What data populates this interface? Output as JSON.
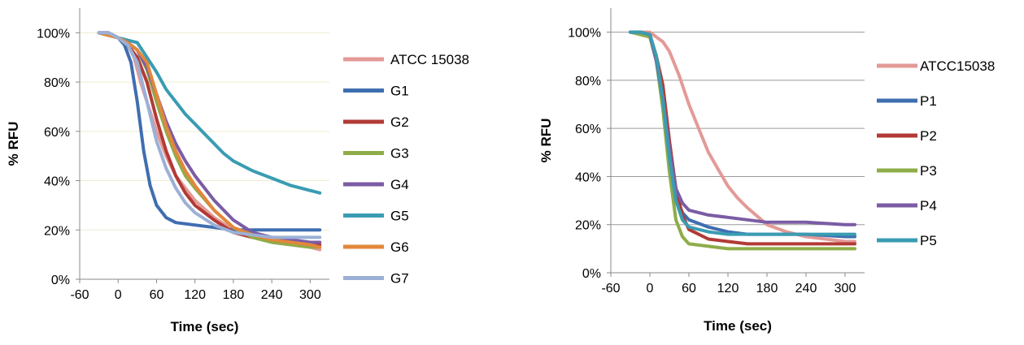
{
  "chart_data": [
    {
      "type": "line",
      "xlabel": "Time (sec)",
      "ylabel": "% RFU",
      "xlim": [
        -60,
        330
      ],
      "ylim": [
        0,
        1.1
      ],
      "x_ticks": [
        "-60",
        "0",
        "60",
        "120",
        "180",
        "240",
        "300"
      ],
      "y_ticks": [
        "0%",
        "20%",
        "40%",
        "60%",
        "80%",
        "100%"
      ],
      "grid": true,
      "legend": "right",
      "series": [
        {
          "name": "ATCC 15038",
          "color": "#e39a97",
          "points": [
            [
              -30,
              1.0
            ],
            [
              -15,
              1.0
            ],
            [
              0,
              0.98
            ],
            [
              15,
              0.95
            ],
            [
              25,
              0.9
            ],
            [
              35,
              0.8
            ],
            [
              45,
              0.72
            ],
            [
              60,
              0.6
            ],
            [
              75,
              0.5
            ],
            [
              90,
              0.42
            ],
            [
              105,
              0.37
            ],
            [
              120,
              0.32
            ],
            [
              150,
              0.25
            ],
            [
              180,
              0.2
            ],
            [
              210,
              0.17
            ],
            [
              240,
              0.15
            ],
            [
              270,
              0.14
            ],
            [
              300,
              0.13
            ],
            [
              315,
              0.12
            ]
          ]
        },
        {
          "name": "G1",
          "color": "#3f6eb0",
          "points": [
            [
              -30,
              1.0
            ],
            [
              -15,
              1.0
            ],
            [
              0,
              0.98
            ],
            [
              10,
              0.95
            ],
            [
              20,
              0.88
            ],
            [
              30,
              0.72
            ],
            [
              40,
              0.52
            ],
            [
              50,
              0.38
            ],
            [
              60,
              0.3
            ],
            [
              75,
              0.25
            ],
            [
              90,
              0.23
            ],
            [
              120,
              0.22
            ],
            [
              150,
              0.21
            ],
            [
              180,
              0.2
            ],
            [
              210,
              0.2
            ],
            [
              240,
              0.2
            ],
            [
              270,
              0.2
            ],
            [
              300,
              0.2
            ],
            [
              315,
              0.2
            ]
          ]
        },
        {
          "name": "G2",
          "color": "#b23a36",
          "points": [
            [
              -30,
              1.0
            ],
            [
              -15,
              0.99
            ],
            [
              0,
              0.98
            ],
            [
              15,
              0.95
            ],
            [
              30,
              0.9
            ],
            [
              45,
              0.8
            ],
            [
              60,
              0.65
            ],
            [
              75,
              0.52
            ],
            [
              90,
              0.42
            ],
            [
              105,
              0.35
            ],
            [
              120,
              0.3
            ],
            [
              150,
              0.24
            ],
            [
              180,
              0.19
            ],
            [
              210,
              0.17
            ],
            [
              240,
              0.16
            ],
            [
              270,
              0.15
            ],
            [
              300,
              0.14
            ],
            [
              315,
              0.14
            ]
          ]
        },
        {
          "name": "G3",
          "color": "#8eac48",
          "points": [
            [
              -30,
              1.0
            ],
            [
              -15,
              0.99
            ],
            [
              0,
              0.98
            ],
            [
              15,
              0.96
            ],
            [
              30,
              0.93
            ],
            [
              45,
              0.85
            ],
            [
              60,
              0.72
            ],
            [
              75,
              0.6
            ],
            [
              90,
              0.5
            ],
            [
              105,
              0.42
            ],
            [
              120,
              0.37
            ],
            [
              150,
              0.28
            ],
            [
              180,
              0.21
            ],
            [
              210,
              0.17
            ],
            [
              240,
              0.15
            ],
            [
              270,
              0.14
            ],
            [
              300,
              0.13
            ],
            [
              315,
              0.13
            ]
          ]
        },
        {
          "name": "G4",
          "color": "#7b5ca4",
          "points": [
            [
              -30,
              1.0
            ],
            [
              -15,
              1.0
            ],
            [
              0,
              0.98
            ],
            [
              15,
              0.96
            ],
            [
              30,
              0.93
            ],
            [
              45,
              0.86
            ],
            [
              60,
              0.75
            ],
            [
              75,
              0.64
            ],
            [
              90,
              0.55
            ],
            [
              105,
              0.48
            ],
            [
              120,
              0.42
            ],
            [
              150,
              0.32
            ],
            [
              180,
              0.24
            ],
            [
              210,
              0.19
            ],
            [
              240,
              0.17
            ],
            [
              270,
              0.16
            ],
            [
              300,
              0.15
            ],
            [
              315,
              0.15
            ]
          ]
        },
        {
          "name": "G5",
          "color": "#3a9cb2",
          "points": [
            [
              -30,
              1.0
            ],
            [
              -15,
              0.99
            ],
            [
              0,
              0.98
            ],
            [
              15,
              0.97
            ],
            [
              30,
              0.96
            ],
            [
              45,
              0.9
            ],
            [
              60,
              0.84
            ],
            [
              75,
              0.77
            ],
            [
              90,
              0.72
            ],
            [
              105,
              0.67
            ],
            [
              120,
              0.63
            ],
            [
              135,
              0.59
            ],
            [
              150,
              0.55
            ],
            [
              165,
              0.51
            ],
            [
              180,
              0.48
            ],
            [
              210,
              0.44
            ],
            [
              240,
              0.41
            ],
            [
              270,
              0.38
            ],
            [
              300,
              0.36
            ],
            [
              315,
              0.35
            ]
          ]
        },
        {
          "name": "G6",
          "color": "#e2873c",
          "points": [
            [
              -30,
              1.0
            ],
            [
              -15,
              0.99
            ],
            [
              0,
              0.98
            ],
            [
              15,
              0.96
            ],
            [
              30,
              0.93
            ],
            [
              45,
              0.88
            ],
            [
              60,
              0.75
            ],
            [
              75,
              0.62
            ],
            [
              90,
              0.52
            ],
            [
              105,
              0.44
            ],
            [
              120,
              0.38
            ],
            [
              150,
              0.28
            ],
            [
              180,
              0.21
            ],
            [
              210,
              0.18
            ],
            [
              240,
              0.16
            ],
            [
              270,
              0.15
            ],
            [
              300,
              0.14
            ],
            [
              315,
              0.13
            ]
          ]
        },
        {
          "name": "G7",
          "color": "#9cb0d6",
          "points": [
            [
              -30,
              1.0
            ],
            [
              -15,
              1.0
            ],
            [
              0,
              0.98
            ],
            [
              15,
              0.95
            ],
            [
              30,
              0.88
            ],
            [
              45,
              0.72
            ],
            [
              60,
              0.56
            ],
            [
              75,
              0.45
            ],
            [
              90,
              0.37
            ],
            [
              105,
              0.31
            ],
            [
              120,
              0.27
            ],
            [
              150,
              0.22
            ],
            [
              180,
              0.19
            ],
            [
              210,
              0.18
            ],
            [
              240,
              0.17
            ],
            [
              270,
              0.17
            ],
            [
              300,
              0.17
            ],
            [
              315,
              0.17
            ]
          ]
        }
      ]
    },
    {
      "type": "line",
      "xlabel": "Time (sec)",
      "ylabel": "% RFU",
      "xlim": [
        -60,
        330
      ],
      "ylim": [
        0,
        1.1
      ],
      "x_ticks": [
        "-60",
        "0",
        "60",
        "120",
        "180",
        "240",
        "300"
      ],
      "y_ticks": [
        "0%",
        "20%",
        "40%",
        "60%",
        "80%",
        "100%"
      ],
      "grid": true,
      "legend": "right",
      "series": [
        {
          "name": "ATCC15038",
          "color": "#e39a97",
          "points": [
            [
              -30,
              1.0
            ],
            [
              -15,
              1.0
            ],
            [
              0,
              1.0
            ],
            [
              10,
              0.98
            ],
            [
              20,
              0.96
            ],
            [
              30,
              0.92
            ],
            [
              45,
              0.82
            ],
            [
              60,
              0.7
            ],
            [
              75,
              0.6
            ],
            [
              90,
              0.5
            ],
            [
              105,
              0.43
            ],
            [
              120,
              0.36
            ],
            [
              135,
              0.31
            ],
            [
              150,
              0.27
            ],
            [
              180,
              0.2
            ],
            [
              210,
              0.17
            ],
            [
              240,
              0.15
            ],
            [
              270,
              0.14
            ],
            [
              300,
              0.13
            ],
            [
              315,
              0.13
            ]
          ]
        },
        {
          "name": "P1",
          "color": "#3f6eb0",
          "points": [
            [
              -30,
              1.0
            ],
            [
              -15,
              1.0
            ],
            [
              0,
              0.99
            ],
            [
              10,
              0.88
            ],
            [
              20,
              0.7
            ],
            [
              30,
              0.5
            ],
            [
              40,
              0.32
            ],
            [
              50,
              0.25
            ],
            [
              60,
              0.22
            ],
            [
              90,
              0.19
            ],
            [
              120,
              0.17
            ],
            [
              150,
              0.16
            ],
            [
              180,
              0.16
            ],
            [
              240,
              0.16
            ],
            [
              300,
              0.15
            ],
            [
              315,
              0.15
            ]
          ]
        },
        {
          "name": "P2",
          "color": "#b23a36",
          "points": [
            [
              -30,
              1.0
            ],
            [
              -15,
              1.0
            ],
            [
              0,
              0.99
            ],
            [
              10,
              0.9
            ],
            [
              20,
              0.78
            ],
            [
              30,
              0.55
            ],
            [
              40,
              0.35
            ],
            [
              50,
              0.24
            ],
            [
              60,
              0.18
            ],
            [
              90,
              0.14
            ],
            [
              120,
              0.13
            ],
            [
              150,
              0.12
            ],
            [
              180,
              0.12
            ],
            [
              240,
              0.12
            ],
            [
              300,
              0.12
            ],
            [
              315,
              0.12
            ]
          ]
        },
        {
          "name": "P3",
          "color": "#8eac48",
          "points": [
            [
              -30,
              1.0
            ],
            [
              -15,
              0.99
            ],
            [
              0,
              0.98
            ],
            [
              10,
              0.88
            ],
            [
              20,
              0.68
            ],
            [
              30,
              0.42
            ],
            [
              40,
              0.22
            ],
            [
              50,
              0.15
            ],
            [
              60,
              0.12
            ],
            [
              90,
              0.11
            ],
            [
              120,
              0.1
            ],
            [
              180,
              0.1
            ],
            [
              240,
              0.1
            ],
            [
              300,
              0.1
            ],
            [
              315,
              0.1
            ]
          ]
        },
        {
          "name": "P4",
          "color": "#7b5ca4",
          "points": [
            [
              -30,
              1.0
            ],
            [
              -15,
              1.0
            ],
            [
              0,
              0.99
            ],
            [
              10,
              0.88
            ],
            [
              20,
              0.72
            ],
            [
              30,
              0.52
            ],
            [
              40,
              0.35
            ],
            [
              50,
              0.29
            ],
            [
              60,
              0.26
            ],
            [
              90,
              0.24
            ],
            [
              120,
              0.23
            ],
            [
              150,
              0.22
            ],
            [
              180,
              0.21
            ],
            [
              240,
              0.21
            ],
            [
              300,
              0.2
            ],
            [
              315,
              0.2
            ]
          ]
        },
        {
          "name": "P5",
          "color": "#3a9cb2",
          "points": [
            [
              -30,
              1.0
            ],
            [
              -15,
              1.0
            ],
            [
              0,
              0.99
            ],
            [
              10,
              0.9
            ],
            [
              20,
              0.72
            ],
            [
              30,
              0.48
            ],
            [
              40,
              0.3
            ],
            [
              50,
              0.22
            ],
            [
              60,
              0.19
            ],
            [
              90,
              0.17
            ],
            [
              120,
              0.16
            ],
            [
              180,
              0.16
            ],
            [
              240,
              0.16
            ],
            [
              300,
              0.16
            ],
            [
              315,
              0.16
            ]
          ]
        }
      ]
    }
  ]
}
